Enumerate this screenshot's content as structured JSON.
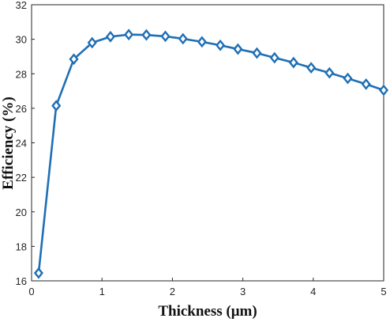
{
  "chart_data": {
    "type": "line",
    "xlabel": "Thickness (μm)",
    "ylabel": "Efficiency (%)",
    "xlim": [
      0,
      5
    ],
    "ylim": [
      16,
      32
    ],
    "xticks": [
      0,
      1,
      2,
      3,
      4,
      5
    ],
    "yticks": [
      16,
      18,
      20,
      22,
      24,
      26,
      28,
      30,
      32
    ],
    "grid": false,
    "legend": "none",
    "series": [
      {
        "marker": "diamond",
        "color": "#1f6fb5",
        "points": [
          {
            "x": 0.1,
            "y": 16.45
          },
          {
            "x": 0.35,
            "y": 26.15
          },
          {
            "x": 0.6,
            "y": 28.85
          },
          {
            "x": 0.86,
            "y": 29.8
          },
          {
            "x": 1.12,
            "y": 30.15
          },
          {
            "x": 1.38,
            "y": 30.27
          },
          {
            "x": 1.63,
            "y": 30.25
          },
          {
            "x": 1.9,
            "y": 30.17
          },
          {
            "x": 2.15,
            "y": 30.03
          },
          {
            "x": 2.42,
            "y": 29.85
          },
          {
            "x": 2.68,
            "y": 29.65
          },
          {
            "x": 2.93,
            "y": 29.43
          },
          {
            "x": 3.2,
            "y": 29.2
          },
          {
            "x": 3.45,
            "y": 28.93
          },
          {
            "x": 3.72,
            "y": 28.65
          },
          {
            "x": 3.97,
            "y": 28.35
          },
          {
            "x": 4.23,
            "y": 28.05
          },
          {
            "x": 4.49,
            "y": 27.73
          },
          {
            "x": 4.75,
            "y": 27.4
          },
          {
            "x": 5.0,
            "y": 27.05
          }
        ]
      }
    ]
  }
}
